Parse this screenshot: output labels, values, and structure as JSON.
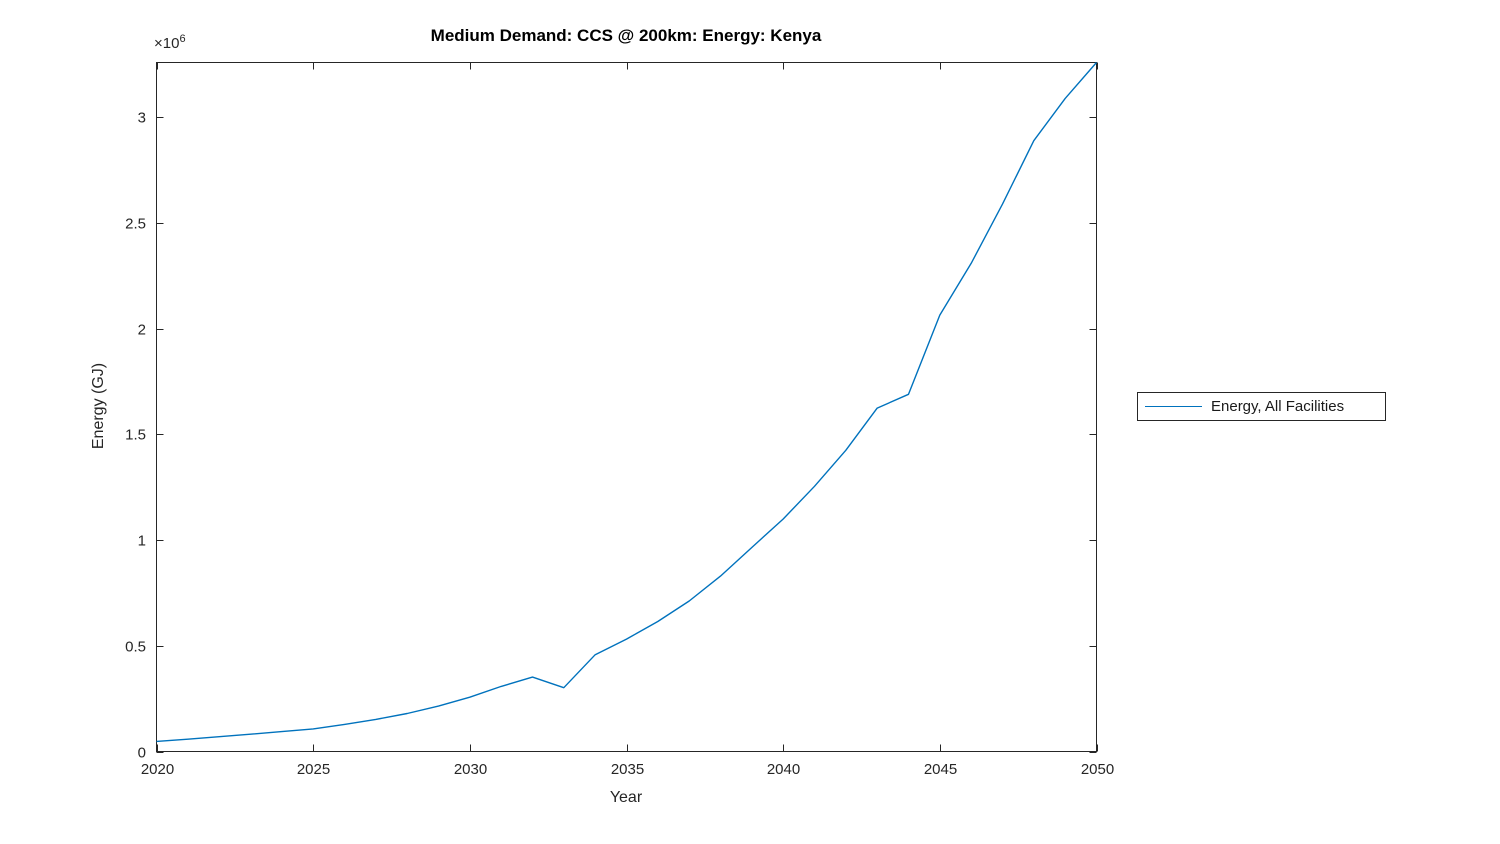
{
  "chart_data": {
    "type": "line",
    "title": "Medium Demand: CCS @ 200km: Energy: Kenya",
    "xlabel": "Year",
    "ylabel": "Energy (GJ)",
    "y_offset": {
      "base": "×10",
      "exponent": "6"
    },
    "xlim": [
      2020,
      2050
    ],
    "ylim": [
      0,
      3260000
    ],
    "grid": false,
    "legend_position": "right-outside",
    "x_ticks": [
      2020,
      2025,
      2030,
      2035,
      2040,
      2045,
      2050
    ],
    "x_tick_labels": [
      "2020",
      "2025",
      "2030",
      "2035",
      "2040",
      "2045",
      "2050"
    ],
    "y_ticks": [
      0,
      500000,
      1000000,
      1500000,
      2000000,
      2500000,
      3000000
    ],
    "y_tick_labels": [
      "0",
      "0.5",
      "1",
      "1.5",
      "2",
      "2.5",
      "3"
    ],
    "x": [
      2020,
      2021,
      2022,
      2023,
      2024,
      2025,
      2026,
      2027,
      2028,
      2029,
      2030,
      2031,
      2032,
      2033,
      2034,
      2035,
      2036,
      2037,
      2038,
      2039,
      2040,
      2041,
      2042,
      2043,
      2044,
      2045,
      2046,
      2047,
      2048,
      2049,
      2050
    ],
    "series": [
      {
        "name": "Energy, All Facilities",
        "color": "#0072BD",
        "values": [
          48000,
          58000,
          70000,
          82000,
          94000,
          107000,
          128000,
          152000,
          180000,
          215000,
          257000,
          308000,
          352000,
          302000,
          458000,
          532000,
          615000,
          712000,
          830000,
          965000,
          1100000,
          1255000,
          1425000,
          1625000,
          1690000,
          2065000,
          2310000,
          2590000,
          2890000,
          3090000,
          3260000
        ]
      }
    ]
  },
  "colors": {
    "axis": "#262626",
    "background": "#ffffff",
    "title_text": "#000000"
  }
}
